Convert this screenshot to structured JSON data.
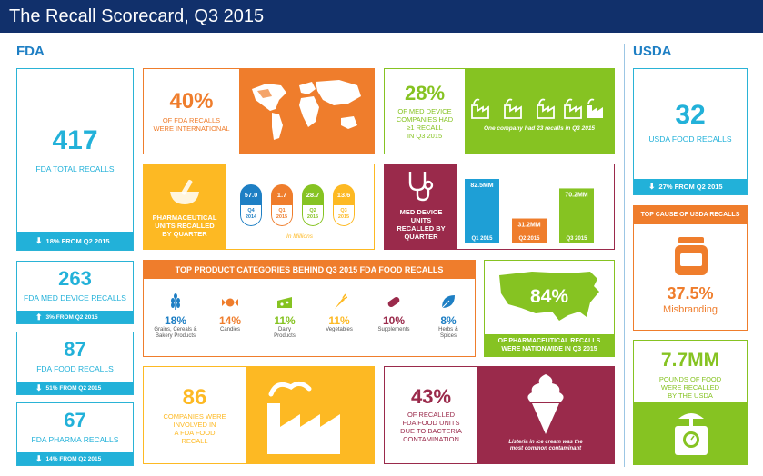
{
  "title": "The Recall Scorecard, Q3 2015",
  "fda_label": "FDA",
  "usda_label": "USDA",
  "fda_total": {
    "value": "417",
    "label": "FDA TOTAL RECALLS",
    "change": "18% FROM Q2 2015"
  },
  "fda_med": {
    "value": "263",
    "label": "FDA MED DEVICE RECALLS",
    "change": "3% FROM Q2 2015"
  },
  "fda_food": {
    "value": "87",
    "label": "FDA FOOD RECALLS",
    "change": "51% FROM Q2 2015"
  },
  "fda_pharma": {
    "value": "67",
    "label": "FDA PHARMA RECALLS",
    "change": "14% FROM Q2 2015"
  },
  "international": {
    "value": "40%",
    "line1": "OF FDA RECALLS",
    "line2": "WERE INTERNATIONAL"
  },
  "med_companies": {
    "value": "28%",
    "line1": "OF MED DEVICE",
    "line2": "COMPANIES HAD",
    "line3": "≥1 RECALL",
    "line4": "IN Q3 2015",
    "note": "One company had 23 recalls in Q3 2015"
  },
  "pharma_units": {
    "line1": "PHARMACEUTICAL",
    "line2": "UNITS RECALLED",
    "line3": "BY QUARTER",
    "unit_note": "In Millions",
    "quarters": [
      {
        "value": "57.0",
        "q": "Q4",
        "year": "2014",
        "color": "#1e7fc4"
      },
      {
        "value": "1.7",
        "q": "Q1",
        "year": "2015",
        "color": "#ef7d2c"
      },
      {
        "value": "28.7",
        "q": "Q2",
        "year": "2015",
        "color": "#86c322"
      },
      {
        "value": "13.6",
        "q": "Q3",
        "year": "2015",
        "color": "#fdb923"
      }
    ]
  },
  "med_units": {
    "line1": "MED DEVICE",
    "line2": "UNITS",
    "line3": "RECALLED BY",
    "line4": "QUARTER",
    "chart_data": {
      "type": "bar",
      "categories": [
        "Q1 2015",
        "Q2 2015",
        "Q3 2015"
      ],
      "values": [
        82.5,
        31.2,
        70.2
      ],
      "value_labels": [
        "82.5MM",
        "31.2MM",
        "70.2MM"
      ],
      "colors": [
        "#1e9fd6",
        "#ef7d2c",
        "#86c322"
      ]
    }
  },
  "food_categories": {
    "title": "TOP PRODUCT CATEGORIES BEHIND Q3 2015 FDA FOOD RECALLS",
    "items": [
      {
        "pct": "18%",
        "name1": "Grains, Cereals &",
        "name2": "Bakery Products",
        "color": "#1e7fc4",
        "icon": "wheat-icon"
      },
      {
        "pct": "14%",
        "name1": "Candies",
        "name2": "",
        "color": "#ef7d2c",
        "icon": "candy-icon"
      },
      {
        "pct": "11%",
        "name1": "Dairy",
        "name2": "Products",
        "color": "#86c322",
        "icon": "cheese-icon"
      },
      {
        "pct": "11%",
        "name1": "Vegetables",
        "name2": "",
        "color": "#fdb923",
        "icon": "carrot-icon"
      },
      {
        "pct": "10%",
        "name1": "Supplements",
        "name2": "",
        "color": "#9a2a4b",
        "icon": "capsule-icon"
      },
      {
        "pct": "8%",
        "name1": "Herbs &",
        "name2": "Spices",
        "color": "#1e7fc4",
        "icon": "leaf-icon"
      }
    ]
  },
  "nationwide": {
    "value": "84%",
    "line1": "OF PHARMACEUTICAL RECALLS",
    "line2": "WERE NATIONWIDE IN Q3 2015"
  },
  "companies": {
    "value": "86",
    "line1": "COMPANIES WERE",
    "line2": "INVOLVED IN",
    "line3": "A FDA FOOD",
    "line4": "RECALL"
  },
  "bacteria": {
    "value": "43%",
    "line1": "OF RECALLED",
    "line2": "FDA FOOD UNITS",
    "line3": "DUE TO BACTERIA",
    "line4": "CONTAMINATION",
    "note1": "Listeria in ice cream was the",
    "note2": "most common contaminant"
  },
  "usda_total": {
    "value": "32",
    "label": "USDA FOOD RECALLS",
    "change": "27% FROM Q2 2015"
  },
  "usda_cause": {
    "header": "TOP CAUSE OF USDA RECALLS",
    "value": "37.5%",
    "label": "Misbranding"
  },
  "usda_pounds": {
    "value": "7.7MM",
    "line1": "POUNDS OF FOOD",
    "line2": "WERE RECALLED",
    "line3": "BY THE USDA"
  }
}
